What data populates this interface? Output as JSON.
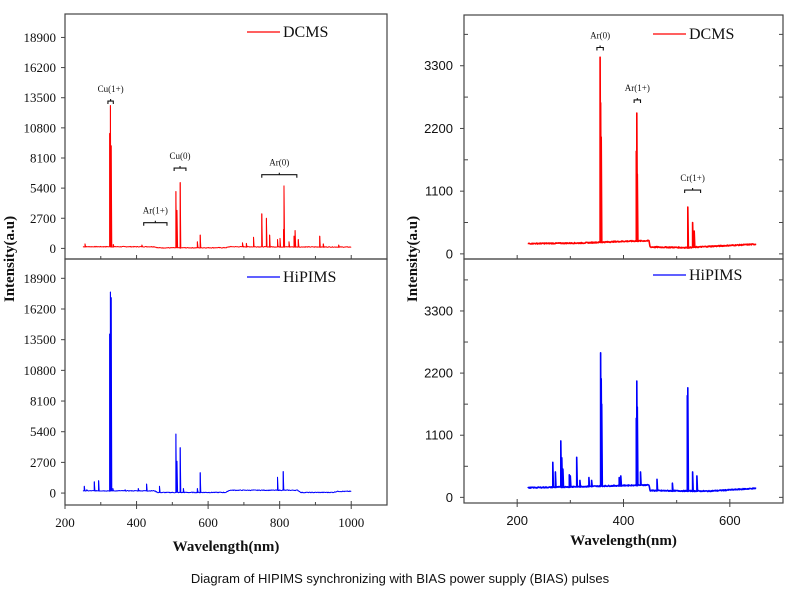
{
  "caption": "Diagram of HIPIMS synchronizing with BIAS power supply (BIAS) pulses",
  "colors": {
    "dcms": "#ff0000",
    "hipims": "#0000ff",
    "axis": "#333333"
  },
  "chart_data": [
    {
      "type": "line",
      "panel": "left",
      "xlabel": "Wavelength(nm)",
      "ylabel": "Intensity(a.u)",
      "xlim": [
        200,
        1100
      ],
      "xticks": [
        200,
        400,
        600,
        800,
        1000
      ],
      "subplots": [
        {
          "name": "DCMS",
          "color": "#ff0000",
          "ylim": [
            -950,
            21000
          ],
          "yticks": [
            0,
            2700,
            5400,
            8100,
            10800,
            13500,
            16200,
            18900
          ],
          "legend": "top-right",
          "baseline": [
            [
              250,
              150
            ],
            [
              450,
              150
            ],
            [
              460,
              50
            ],
            [
              650,
              60
            ],
            [
              660,
              150
            ],
            [
              1000,
              120
            ]
          ],
          "x_range": [
            250,
            1000
          ],
          "peaks": [
            [
              256,
              400
            ],
            [
              325,
              10300
            ],
            [
              327,
              12800
            ],
            [
              329,
              9200
            ],
            [
              335,
              350
            ],
            [
              415,
              300
            ],
            [
              510,
              5100
            ],
            [
              513,
              3400
            ],
            [
              522,
              5900
            ],
            [
              570,
              600
            ],
            [
              578,
              1200
            ],
            [
              696,
              500
            ],
            [
              707,
              450
            ],
            [
              727,
              1000
            ],
            [
              750,
              3100
            ],
            [
              763,
              2700
            ],
            [
              772,
              1200
            ],
            [
              794,
              800
            ],
            [
              801,
              900
            ],
            [
              811,
              1700
            ],
            [
              812,
              5600
            ],
            [
              826,
              600
            ],
            [
              840,
              1100
            ],
            [
              843,
              1600
            ],
            [
              852,
              800
            ],
            [
              912,
              1100
            ],
            [
              922,
              400
            ],
            [
              965,
              300
            ]
          ],
          "annotations": [
            {
              "label": "Cu(1+)",
              "x_from": 320,
              "x_to": 335,
              "y": 13200
            },
            {
              "label": "Ar(1+)",
              "x_from": 420,
              "x_to": 485,
              "y": 2300
            },
            {
              "label": "Cu(0)",
              "x_from": 505,
              "x_to": 538,
              "y": 7200
            },
            {
              "label": "Ar(0)",
              "x_from": 750,
              "x_to": 848,
              "y": 6600
            }
          ]
        },
        {
          "name": "HiPIMS",
          "color": "#0000ff",
          "ylim": [
            -1050,
            20600
          ],
          "yticks": [
            0,
            2700,
            5400,
            8100,
            10800,
            13500,
            16200,
            18900
          ],
          "legend": "top-right",
          "baseline": [
            [
              250,
              200
            ],
            [
              450,
              200
            ],
            [
              460,
              50
            ],
            [
              650,
              60
            ],
            [
              660,
              250
            ],
            [
              850,
              250
            ],
            [
              860,
              50
            ],
            [
              950,
              60
            ],
            [
              960,
              150
            ],
            [
              1000,
              150
            ]
          ],
          "x_range": [
            250,
            1000
          ],
          "peaks": [
            [
              254,
              600
            ],
            [
              261,
              300
            ],
            [
              282,
              1000
            ],
            [
              294,
              1100
            ],
            [
              325,
              14000
            ],
            [
              327,
              17700
            ],
            [
              329,
              17200
            ],
            [
              334,
              400
            ],
            [
              368,
              300
            ],
            [
              405,
              400
            ],
            [
              428,
              800
            ],
            [
              464,
              600
            ],
            [
              510,
              5200
            ],
            [
              513,
              2800
            ],
            [
              522,
              4000
            ],
            [
              531,
              400
            ],
            [
              570,
              400
            ],
            [
              578,
              1800
            ],
            [
              794,
              1400
            ],
            [
              810,
              1900
            ]
          ],
          "annotations": []
        }
      ]
    },
    {
      "type": "line",
      "panel": "right",
      "xlabel": "Wavelength(nm)",
      "ylabel": "Intensity(a.u)",
      "xlim": [
        100,
        700
      ],
      "xticks": [
        200,
        400,
        600
      ],
      "subplots": [
        {
          "name": "DCMS",
          "color": "#ff0000",
          "ylim": [
            -90,
            4190
          ],
          "yticks": [
            0,
            1100,
            2200,
            3300
          ],
          "legend": "top-right",
          "baseline": [
            [
              220,
              180
            ],
            [
              320,
              190
            ],
            [
              400,
              220
            ],
            [
              448,
              230
            ],
            [
              450,
              120
            ],
            [
              520,
              110
            ],
            [
              560,
              130
            ],
            [
              650,
              170
            ]
          ],
          "x_range": [
            220,
            650
          ],
          "peaks": [
            [
              356,
              3450
            ],
            [
              357,
              2650
            ],
            [
              358,
              2050
            ],
            [
              424,
              1800
            ],
            [
              425,
              2470
            ],
            [
              426,
              1400
            ],
            [
              521,
              820
            ],
            [
              530,
              550
            ],
            [
              533,
              400
            ]
          ],
          "annotations": [
            {
              "label": "Ar(0)",
              "x_from": 350,
              "x_to": 362,
              "y": 3620
            },
            {
              "label": "Ar(1+)",
              "x_from": 420,
              "x_to": 432,
              "y": 2700
            },
            {
              "label": "Cr(1+)",
              "x_from": 515,
              "x_to": 545,
              "y": 1120
            }
          ]
        },
        {
          "name": "HiPIMS",
          "color": "#0000ff",
          "ylim": [
            -100,
            4220
          ],
          "yticks": [
            0,
            1100,
            2200,
            3300
          ],
          "legend": "top-right",
          "baseline": [
            [
              220,
              170
            ],
            [
              320,
              190
            ],
            [
              400,
              210
            ],
            [
              448,
              220
            ],
            [
              450,
              120
            ],
            [
              560,
              110
            ],
            [
              650,
              160
            ]
          ],
          "x_range": [
            220,
            650
          ],
          "peaks": [
            [
              267,
              620
            ],
            [
              272,
              450
            ],
            [
              282,
              1000
            ],
            [
              284,
              700
            ],
            [
              286,
              500
            ],
            [
              298,
              400
            ],
            [
              300,
              380
            ],
            [
              312,
              710
            ],
            [
              318,
              300
            ],
            [
              335,
              350
            ],
            [
              340,
              300
            ],
            [
              357,
              2560
            ],
            [
              358,
              2100
            ],
            [
              359,
              1650
            ],
            [
              392,
              350
            ],
            [
              395,
              380
            ],
            [
              424,
              1400
            ],
            [
              425,
              2060
            ],
            [
              426,
              1600
            ],
            [
              432,
              450
            ],
            [
              463,
              320
            ],
            [
              492,
              250
            ],
            [
              520,
              1800
            ],
            [
              521,
              1940
            ],
            [
              530,
              450
            ],
            [
              538,
              380
            ]
          ],
          "annotations": []
        }
      ]
    }
  ]
}
